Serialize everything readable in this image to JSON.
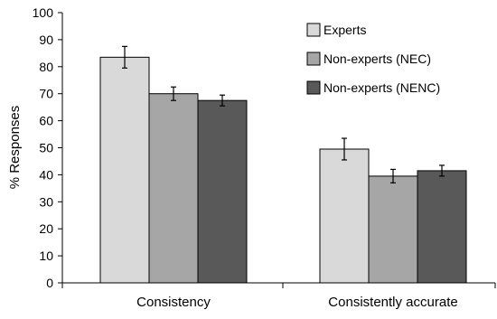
{
  "chart_data": {
    "type": "bar",
    "title": "",
    "xlabel": "",
    "ylabel": "% Responses",
    "ylim": [
      0,
      100
    ],
    "yticks": [
      0,
      10,
      20,
      30,
      40,
      50,
      60,
      70,
      80,
      90,
      100
    ],
    "grid": false,
    "legend_position": "top-right",
    "categories": [
      "Consistency",
      "Consistently accurate"
    ],
    "series": [
      {
        "name": "Experts",
        "color": "#d9d9d9",
        "values": [
          83.5,
          49.5
        ],
        "errors": [
          4.0,
          4.0
        ]
      },
      {
        "name": "Non-experts (NEC)",
        "color": "#a6a6a6",
        "values": [
          70.0,
          39.5
        ],
        "errors": [
          2.5,
          2.5
        ]
      },
      {
        "name": "Non-experts (NENC)",
        "color": "#595959",
        "values": [
          67.5,
          41.5
        ],
        "errors": [
          2.0,
          2.0
        ]
      }
    ]
  }
}
